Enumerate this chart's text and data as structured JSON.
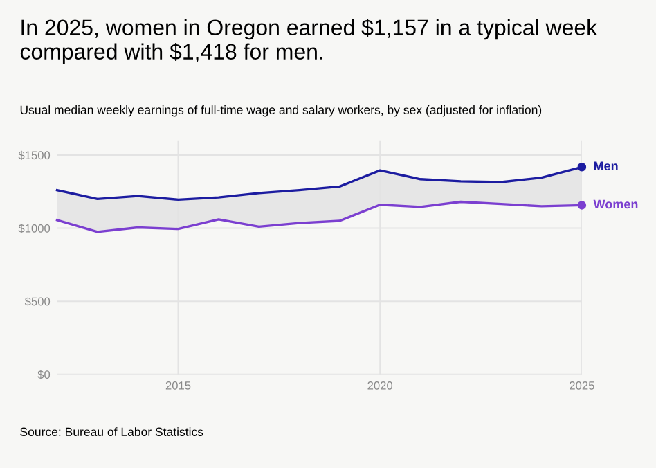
{
  "chart_data": {
    "type": "line",
    "title": "In 2025, women in Oregon earned $1,157 in a typical week\ncompared with $1,418 for men.",
    "subtitle": "Usual median weekly earnings of full-time wage and salary workers, by sex (adjusted for inflation)",
    "annotations": [
      "Source: Bureau of Labor Statistics"
    ],
    "x": [
      2012,
      2013,
      2014,
      2015,
      2016,
      2017,
      2018,
      2019,
      2020,
      2021,
      2022,
      2023,
      2024,
      2025
    ],
    "series": [
      {
        "name": "Men",
        "color": "#1c1ca0",
        "values": [
          1260,
          1200,
          1220,
          1195,
          1210,
          1240,
          1260,
          1285,
          1395,
          1335,
          1320,
          1315,
          1345,
          1418
        ]
      },
      {
        "name": "Women",
        "color": "#7b3fd0",
        "values": [
          1055,
          975,
          1005,
          995,
          1060,
          1010,
          1035,
          1050,
          1160,
          1145,
          1180,
          1165,
          1150,
          1157
        ]
      }
    ],
    "xlim": [
      2012,
      2025
    ],
    "xticks": [
      2015,
      2020,
      2025
    ],
    "ylim": [
      0,
      1600
    ],
    "yticks": [
      {
        "value": 0,
        "label": "$0"
      },
      {
        "value": 500,
        "label": "$500"
      },
      {
        "value": 1000,
        "label": "$1000"
      },
      {
        "value": 1500,
        "label": "$1500"
      }
    ],
    "grid": true,
    "marker": "none",
    "line_style": "solid",
    "legend": "right"
  }
}
